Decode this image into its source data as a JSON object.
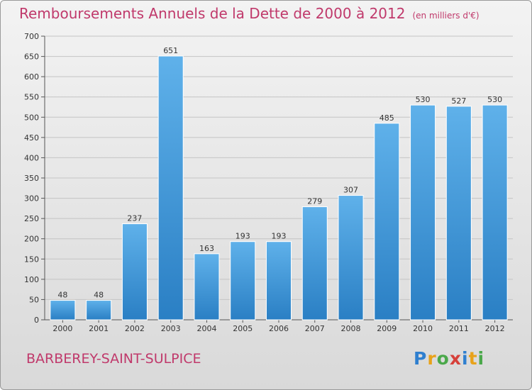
{
  "title": "Remboursements Annuels de la Dette de 2000 à 2012",
  "unit": "(en milliers d'€)",
  "location": "BARBEREY-SAINT-SULPICE",
  "logo": "Proxiti",
  "colors": {
    "bar_top": "#5fb1ea",
    "bar_bottom": "#2a7fc4",
    "title": "#c0396b",
    "grid": "#c4c4c4"
  },
  "chart_data": {
    "type": "bar",
    "title": "Remboursements Annuels de la Dette de 2000 à 2012",
    "xlabel": "",
    "ylabel": "",
    "categories": [
      "2000",
      "2001",
      "2002",
      "2003",
      "2004",
      "2005",
      "2006",
      "2007",
      "2008",
      "2009",
      "2010",
      "2011",
      "2012"
    ],
    "values": [
      48,
      48,
      237,
      651,
      163,
      193,
      193,
      279,
      307,
      485,
      530,
      527,
      530
    ],
    "ylim": [
      0,
      700
    ],
    "yticks": [
      0,
      50,
      100,
      150,
      200,
      250,
      300,
      350,
      400,
      450,
      500,
      550,
      600,
      650,
      700
    ],
    "grid": true,
    "data_labels": true
  }
}
